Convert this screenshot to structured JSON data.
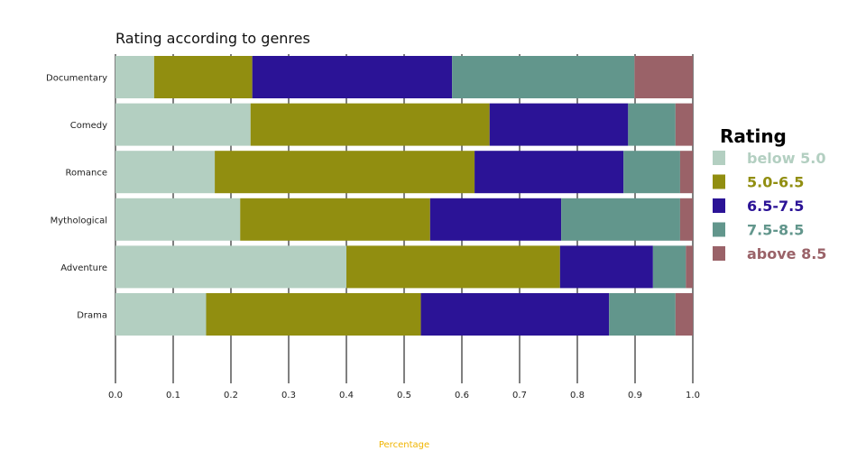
{
  "chart_data": {
    "type": "bar",
    "orientation": "horizontal",
    "stacked": true,
    "title": "Rating according to genres",
    "xlabel": "Percentage",
    "ylabel": "",
    "xlim": [
      0,
      1
    ],
    "xticks": [
      "0.0",
      "0.1",
      "0.2",
      "0.3",
      "0.4",
      "0.5",
      "0.6",
      "0.7",
      "0.8",
      "0.9",
      "1.0"
    ],
    "grid": "vertical",
    "legend_position": "right",
    "legend_title": "Rating",
    "categories": [
      "Documentary",
      "Comedy",
      "Romance",
      "Mythological",
      "Adventure",
      "Drama"
    ],
    "series": [
      {
        "name": "below 5.0",
        "color": "#b3cfc1",
        "values": [
          0.067,
          0.234,
          0.172,
          0.216,
          0.4,
          0.157
        ]
      },
      {
        "name": "5.0-6.5",
        "color": "#918e10",
        "values": [
          0.17,
          0.414,
          0.45,
          0.329,
          0.37,
          0.372
        ]
      },
      {
        "name": "6.5-7.5",
        "color": "#2b1396",
        "values": [
          0.346,
          0.24,
          0.258,
          0.227,
          0.161,
          0.326
        ]
      },
      {
        "name": "7.5-8.5",
        "color": "#62968c",
        "values": [
          0.316,
          0.082,
          0.098,
          0.206,
          0.057,
          0.115
        ]
      },
      {
        "name": "above 8.5",
        "color": "#9a6268",
        "values": [
          0.101,
          0.03,
          0.022,
          0.022,
          0.012,
          0.03
        ]
      }
    ]
  }
}
